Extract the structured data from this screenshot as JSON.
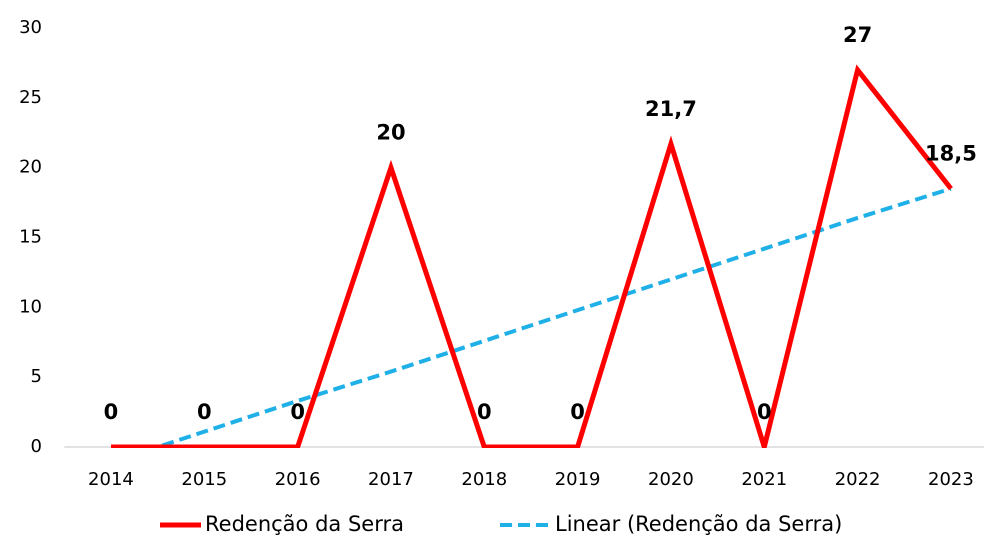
{
  "chart_data": {
    "type": "line",
    "categories": [
      "2014",
      "2015",
      "2016",
      "2017",
      "2018",
      "2019",
      "2020",
      "2021",
      "2022",
      "2023"
    ],
    "series": [
      {
        "name": "Redenção da Serra",
        "color": "#ff0000",
        "values": [
          0,
          0,
          0,
          20,
          0,
          0,
          21.7,
          0,
          27,
          18.5
        ],
        "value_labels": [
          "0",
          "0",
          "0",
          "20",
          "0",
          "0",
          "21,7",
          "0",
          "27",
          "18,5"
        ]
      },
      {
        "name": "Linear (Redenção da Serra)",
        "color": "#1fb0e8",
        "dashed": true,
        "values": [
          -1.1,
          1.1,
          3.3,
          5.4,
          7.6,
          9.8,
          12.0,
          14.2,
          16.4,
          18.5
        ]
      }
    ],
    "ylim": [
      0,
      30
    ],
    "yticks": [
      0,
      5,
      10,
      15,
      20,
      25,
      30
    ],
    "legend": "bottom"
  }
}
